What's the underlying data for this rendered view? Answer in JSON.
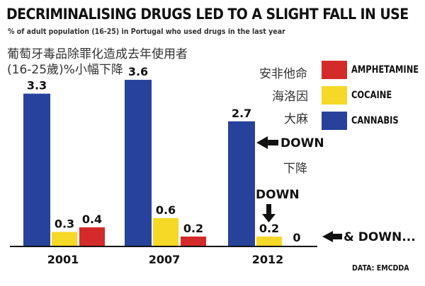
{
  "title": "DECRIMINALISING DRUGS LED TO A SLIGHT FALL IN USE",
  "subtitle": "% of adult population (16-25) in Portugal who used drugs in the last year",
  "title_cn_line1": "葡萄牙毒品除罪化造成去年使用者",
  "title_cn_line2": "(16-25歲)%小幅下降",
  "legend": [
    {
      "label": "AMPHETAMINE",
      "label_cn": "安非他命",
      "color": "#d42a2a"
    },
    {
      "label": "COCAINE",
      "label_cn": "海洛因",
      "color": "#f6d826"
    },
    {
      "label": "CANNABIS",
      "label_cn": "大麻",
      "color": "#26429a"
    }
  ],
  "annotations": {
    "down_label": "DOWN",
    "down_cn": "下降",
    "down_small": "DOWN",
    "and_down": "& DOWN..."
  },
  "source": "DATA: EMCDDA",
  "chart_data": {
    "type": "bar",
    "categories": [
      "2001",
      "2007",
      "2012"
    ],
    "series": [
      {
        "name": "CANNABIS",
        "values": [
          3.3,
          3.6,
          2.7
        ],
        "labels": [
          "3.3",
          "3.6",
          "2.7"
        ]
      },
      {
        "name": "COCAINE",
        "values": [
          0.3,
          0.6,
          0.2
        ],
        "labels": [
          "0.3",
          "0.6",
          "0.2"
        ]
      },
      {
        "name": "AMPHETAMINE",
        "values": [
          0.4,
          0.2,
          0
        ],
        "labels": [
          "0.4",
          "0.2",
          "0"
        ]
      }
    ],
    "ylim": [
      0,
      3.8
    ],
    "colors": {
      "CANNABIS": "#26429a",
      "COCAINE": "#f6d826",
      "AMPHETAMINE": "#d42a2a"
    }
  }
}
